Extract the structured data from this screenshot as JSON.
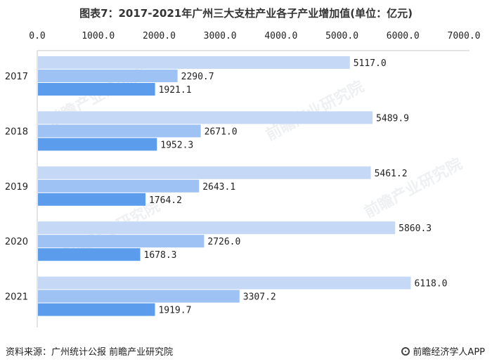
{
  "title": "图表7：2017-2021年广州三大支柱产业各子产业增加值(单位：亿元)",
  "source": "资料来源：广州统计公报 前瞻产业研究院",
  "brand": "前瞻经济学人APP",
  "watermark": "前瞻产业研究院",
  "colors": {
    "series": [
      "#c5d9f7",
      "#9fc2f5",
      "#5b9cec"
    ],
    "axis": "#c8c8c8",
    "text": "#222222"
  },
  "chart_data": {
    "type": "bar",
    "orientation": "horizontal",
    "categories": [
      "2017",
      "2018",
      "2019",
      "2020",
      "2021"
    ],
    "series": [
      {
        "values": [
          5117.0,
          5489.9,
          5461.2,
          5860.3,
          6118.0
        ]
      },
      {
        "values": [
          2290.7,
          2671.0,
          2643.1,
          2726.0,
          3307.2
        ]
      },
      {
        "values": [
          1921.1,
          1952.3,
          1764.2,
          1678.3,
          1919.7
        ]
      }
    ],
    "ticks": [
      "0.0",
      "1000.0",
      "2000.0",
      "3000.0",
      "4000.0",
      "5000.0",
      "6000.0",
      "7000.0"
    ],
    "xlim": [
      0,
      7000
    ],
    "axis_position": "top",
    "grid": false,
    "legend": "none"
  }
}
